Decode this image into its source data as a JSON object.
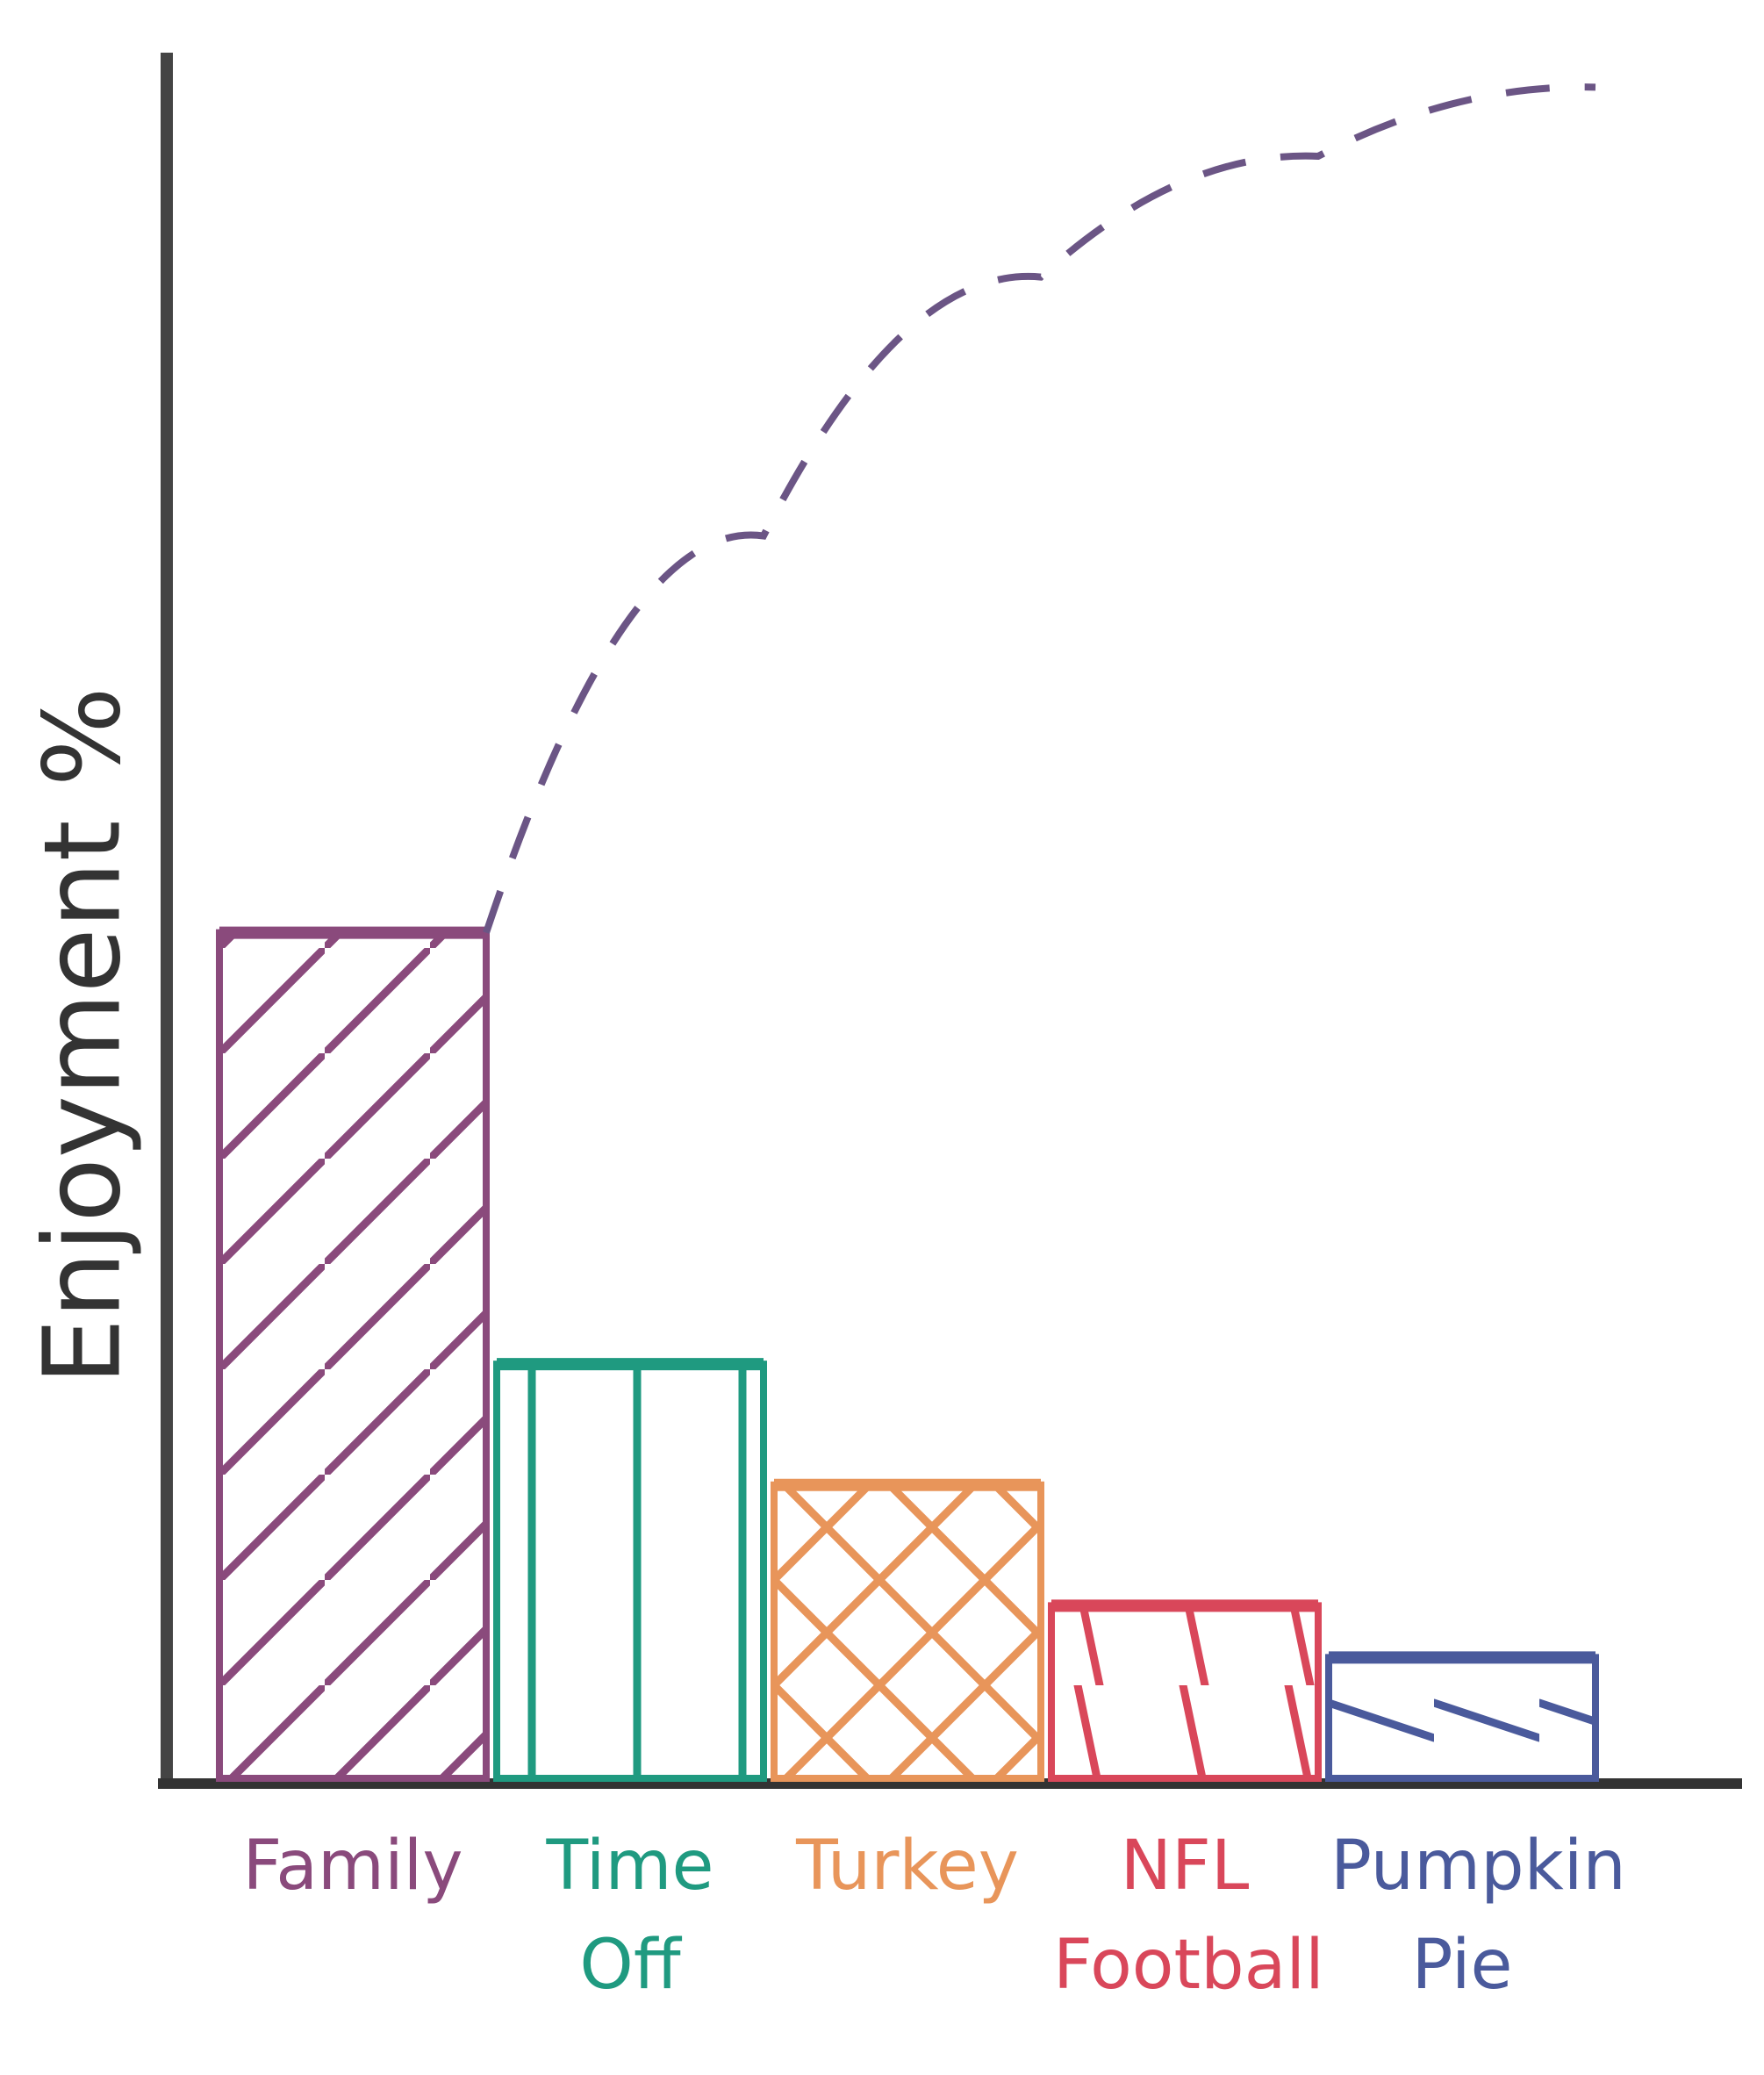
{
  "chart_data": {
    "type": "bar",
    "y_label": "Enjoyment %",
    "categories": [
      "Family",
      "Time Off",
      "Turkey",
      "NFL Football",
      "Pumpkin Pie"
    ],
    "values": [
      49,
      24,
      17,
      10,
      7
    ],
    "colors": [
      "#8a4a7c",
      "#1f9a80",
      "#e8955a",
      "#d9475a",
      "#4a5a9c"
    ],
    "ylim": [
      0,
      100
    ],
    "cumulative": {
      "type": "line",
      "values": [
        49,
        72,
        87,
        94,
        98
      ],
      "color": "#6b5585",
      "dashed": true
    }
  }
}
